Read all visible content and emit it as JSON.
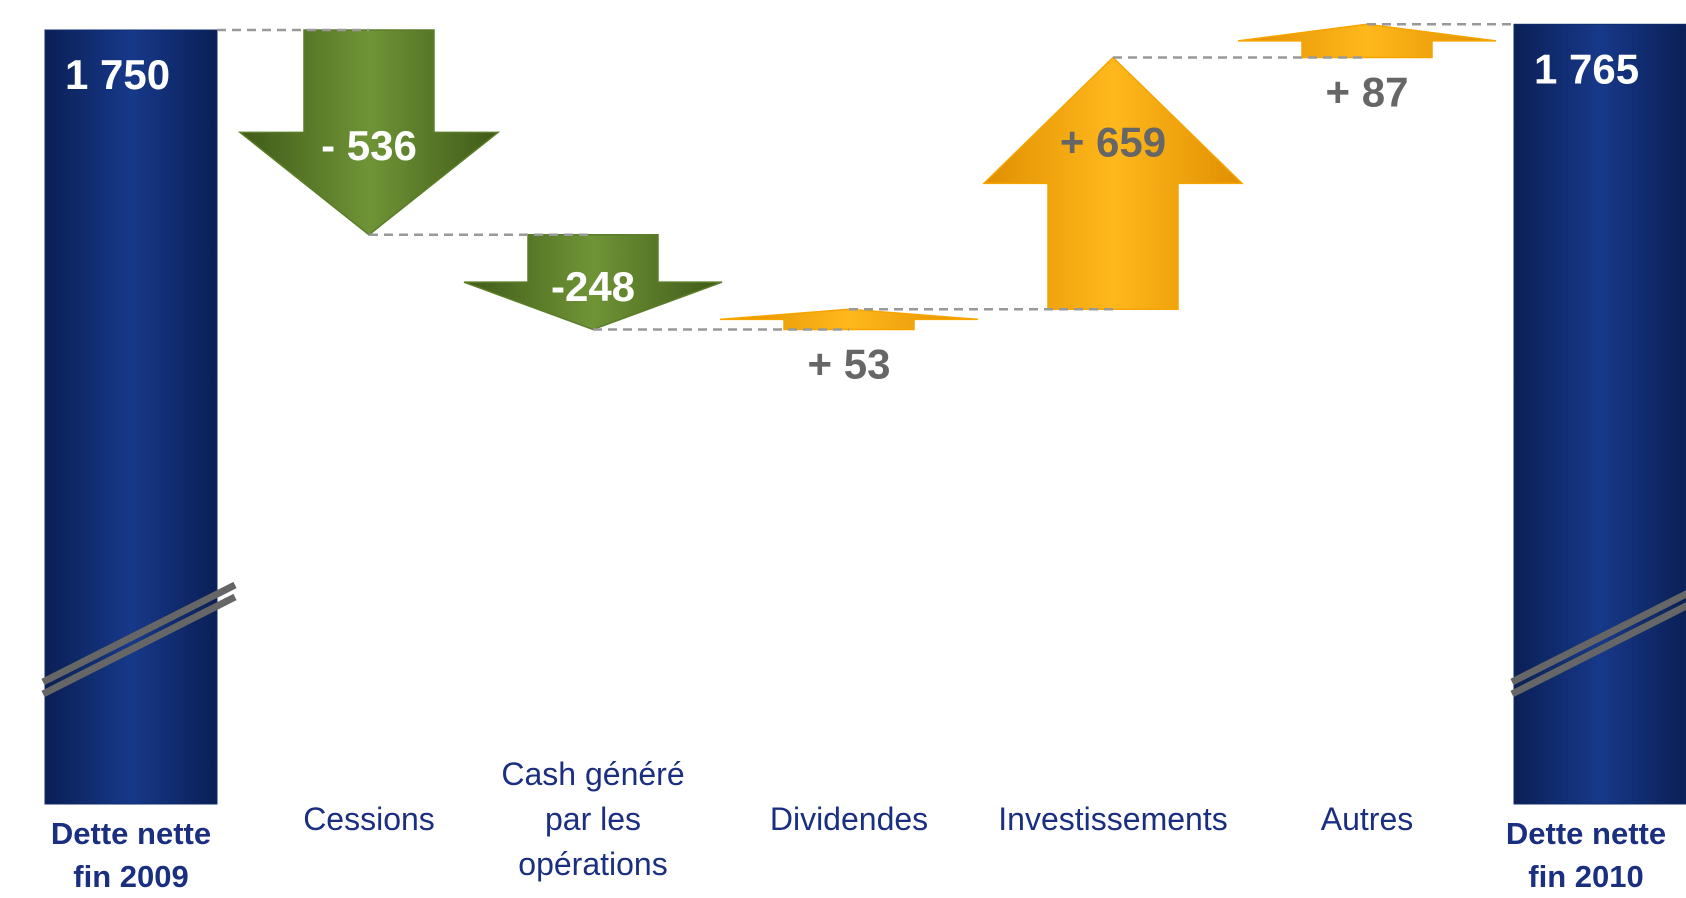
{
  "chart_data": {
    "type": "waterfall",
    "categories": [
      "Dette nette fin 2009",
      "Cessions",
      "Cash généré par les opérations",
      "Dividendes",
      "Investissements",
      "Autres",
      "Dette nette fin 2010"
    ],
    "values": [
      1750,
      -536,
      -248,
      53,
      659,
      87,
      1765
    ],
    "value_labels": [
      "1 750",
      "- 536",
      "-248",
      "+ 53",
      "+ 659",
      "+ 87",
      "1  765"
    ],
    "totals": [
      0,
      6
    ],
    "colors": {
      "total": "#0f2b6f",
      "decrease": "#5b7d2a",
      "increase": "#f5a400"
    }
  }
}
